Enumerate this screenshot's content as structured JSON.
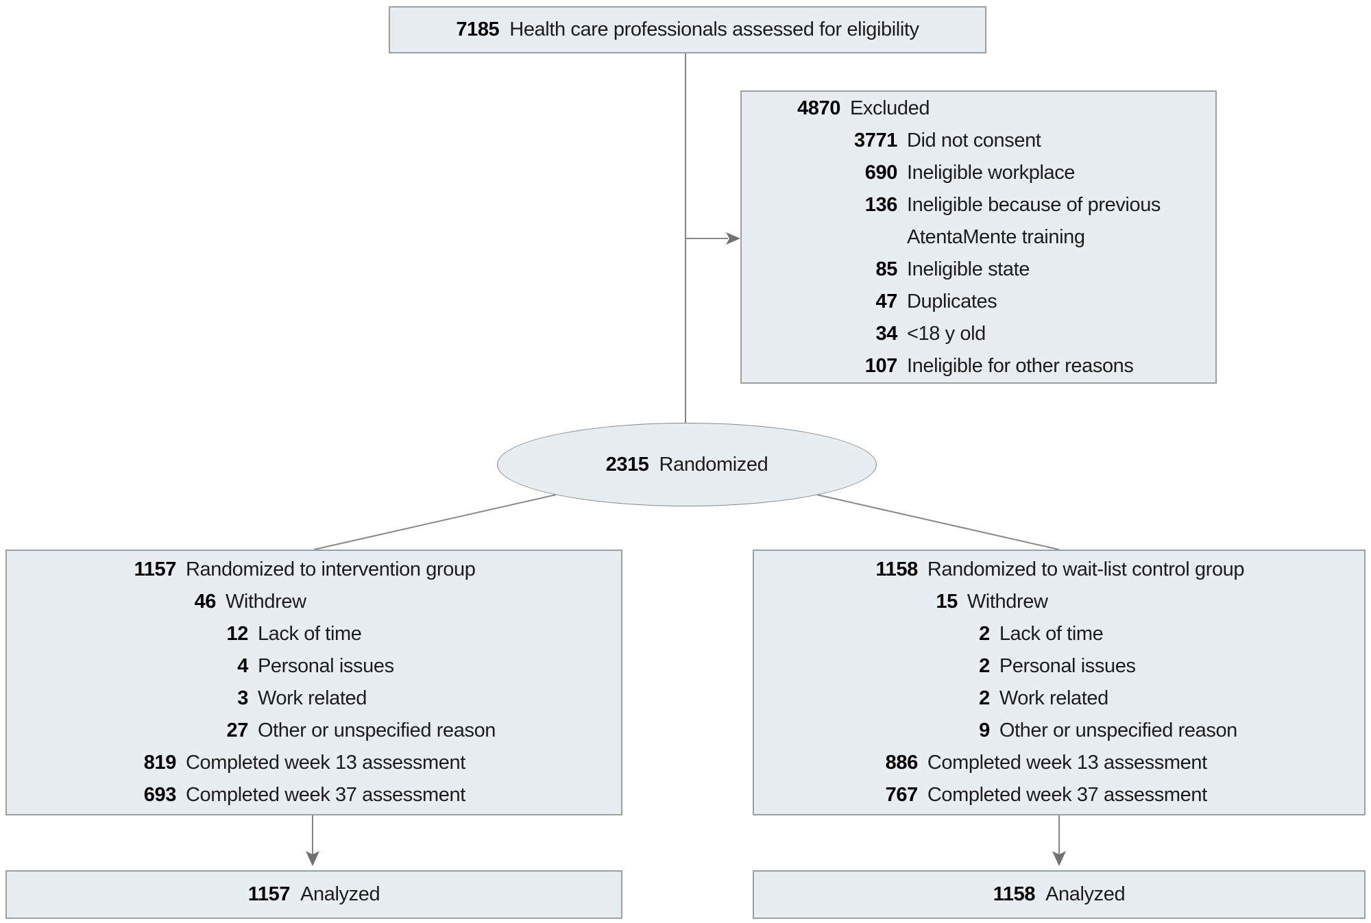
{
  "top_box": {
    "number": "7185",
    "label": "Health care professionals assessed for eligibility"
  },
  "excluded_box": {
    "rows": [
      {
        "number": "4870",
        "label": "Excluded",
        "level": 0
      },
      {
        "number": "3771",
        "label": "Did not consent",
        "level": 1
      },
      {
        "number": "690",
        "label": "Ineligible workplace",
        "level": 1
      },
      {
        "number": "136",
        "label": "Ineligible because of previous\nAtentaMente training",
        "level": 1
      },
      {
        "number": "85",
        "label": "Ineligible state",
        "level": 1
      },
      {
        "number": "47",
        "label": "Duplicates",
        "level": 1
      },
      {
        "number": "34",
        "label": "<18 y old",
        "level": 1
      },
      {
        "number": "107",
        "label": "Ineligible for other reasons",
        "level": 1
      }
    ]
  },
  "randomized_ellipse": {
    "number": "2315",
    "label": "Randomized"
  },
  "intervention_box": {
    "rows": [
      {
        "number": "1157",
        "label": "Randomized to intervention group",
        "level": 0
      },
      {
        "number": "46",
        "label": "Withdrew",
        "level": 1
      },
      {
        "number": "12",
        "label": "Lack of time",
        "level": 2
      },
      {
        "number": "4",
        "label": "Personal issues",
        "level": 2
      },
      {
        "number": "3",
        "label": "Work related",
        "level": 2
      },
      {
        "number": "27",
        "label": "Other or unspecified reason",
        "level": 2
      },
      {
        "number": "819",
        "label": "Completed week 13 assessment",
        "level": 0
      },
      {
        "number": "693",
        "label": "Completed week 37 assessment",
        "level": 0
      }
    ]
  },
  "control_box": {
    "rows": [
      {
        "number": "1158",
        "label": "Randomized to wait-list control group",
        "level": 0
      },
      {
        "number": "15",
        "label": "Withdrew",
        "level": 1
      },
      {
        "number": "2",
        "label": "Lack of time",
        "level": 2
      },
      {
        "number": "2",
        "label": "Personal issues",
        "level": 2
      },
      {
        "number": "2",
        "label": "Work related",
        "level": 2
      },
      {
        "number": "9",
        "label": "Other or unspecified reason",
        "level": 2
      },
      {
        "number": "886",
        "label": "Completed week 13 assessment",
        "level": 0
      },
      {
        "number": "767",
        "label": "Completed week 37 assessment",
        "level": 0
      }
    ]
  },
  "analyzed_intervention_box": {
    "number": "1157",
    "label": "Analyzed"
  },
  "analyzed_control_box": {
    "number": "1158",
    "label": "Analyzed"
  },
  "colors": {
    "box_fill": "#e7edf0",
    "box_border": "#9aa0a3",
    "connector": "#85898c",
    "arrowhead": "#6e7275",
    "number_text": "#000000",
    "label_text": "#1c1c1c"
  }
}
